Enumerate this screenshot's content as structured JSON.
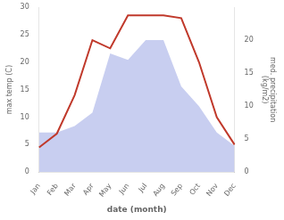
{
  "chart_data": {
    "type": "line",
    "categories": [
      "Jan",
      "Feb",
      "Mar",
      "Apr",
      "May",
      "Jun",
      "Jul",
      "Aug",
      "Sep",
      "Oct",
      "Nov",
      "Dec"
    ],
    "series": [
      {
        "type": "area",
        "axis": "y2",
        "color": "#aab4e8",
        "values": [
          6,
          6,
          7,
          9,
          18,
          17,
          20,
          20,
          13,
          10,
          6,
          4
        ]
      },
      {
        "type": "line",
        "color": "#c0392b",
        "values": [
          4.5,
          7.0,
          14.0,
          24.0,
          22.5,
          28.5,
          28.5,
          28.5,
          28.0,
          20.0,
          10.0,
          5.0
        ]
      }
    ],
    "xlabel": "date (month)",
    "ylabel": "max temp (C)",
    "y2label": "med. precipitation\n(kg/m2)",
    "ylim": [
      0,
      30
    ],
    "yticks": [
      0,
      5,
      10,
      15,
      20,
      25,
      30
    ],
    "y2lim": [
      0,
      25
    ],
    "y2ticks": [
      0,
      5,
      10,
      15,
      20
    ],
    "grid": false
  }
}
